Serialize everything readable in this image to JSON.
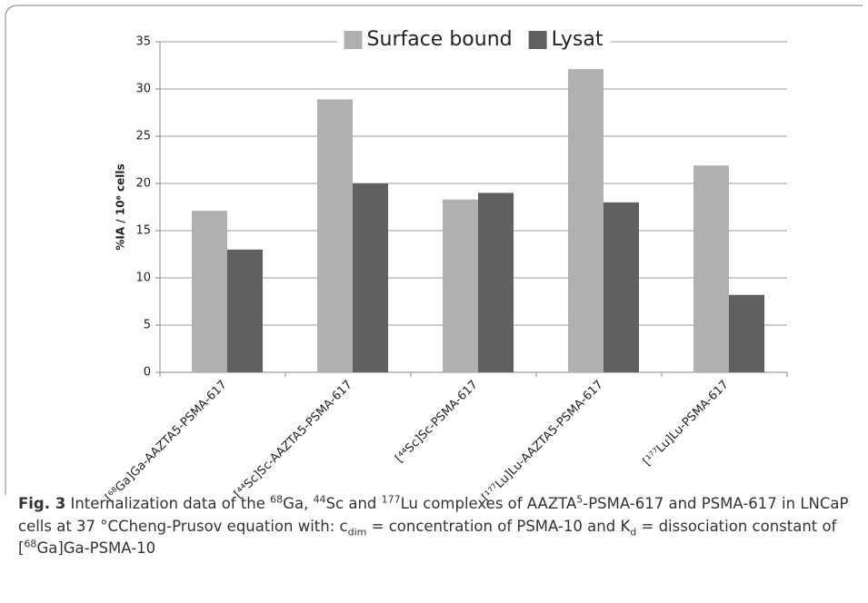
{
  "chart_data": {
    "type": "bar",
    "categories": [
      "[⁶⁸Ga]Ga-AAZTA5-PSMA-617",
      "[⁴⁴Sc]Sc-AAZTA5-PSMA-617",
      "[⁴⁴Sc]Sc-PSMA-617",
      "[¹⁷⁷Lu]Lu-AAZTA5-PSMA-617",
      "[¹⁷⁷Lu]Lu-PSMA-617"
    ],
    "series": [
      {
        "name": "Surface bound",
        "color": "#b0b0b0",
        "values": [
          17.1,
          28.9,
          18.3,
          32.1,
          21.9
        ]
      },
      {
        "name": "Lysat",
        "color": "#606060",
        "values": [
          13,
          20,
          19,
          18,
          8.2
        ]
      }
    ],
    "y_label": "%IA / 10⁶ cells",
    "ylim": [
      0,
      35
    ],
    "yticks": [
      0,
      5,
      10,
      15,
      20,
      25,
      30,
      35
    ],
    "grid": true,
    "legend": "top"
  },
  "caption": {
    "label": "Fig. 3",
    "parts": [
      {
        "text": " Internalization data of the "
      },
      {
        "text": "68",
        "style": "sup"
      },
      {
        "text": "Ga, "
      },
      {
        "text": "44",
        "style": "sup"
      },
      {
        "text": "Sc and "
      },
      {
        "text": "177",
        "style": "sup"
      },
      {
        "text": "Lu complexes of AAZTA"
      },
      {
        "text": "5",
        "style": "sup"
      },
      {
        "text": "-PSMA-617 and PSMA-617 in LNCaP cells at 37 °CCheng-Prusov equation with: c"
      },
      {
        "text": "dim",
        "style": "sub"
      },
      {
        "text": " = concentration of PSMA-10 and K"
      },
      {
        "text": "d",
        "style": "sub"
      },
      {
        "text": " = dissociation constant of ["
      },
      {
        "text": "68",
        "style": "sup"
      },
      {
        "text": "Ga]Ga-PSMA-10"
      }
    ]
  }
}
